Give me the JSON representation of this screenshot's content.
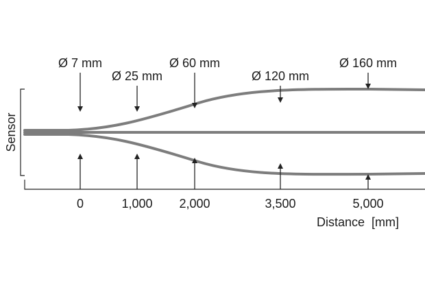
{
  "sensor_label": "Sensor",
  "distance_label": "Distance  [mm]",
  "colors": {
    "beam": "#7d7d7d",
    "ink": "#222222",
    "text": "#1a1a1a",
    "background": "#ffffff"
  },
  "spots": [
    {
      "distance_mm": 0,
      "tick_label": "0",
      "diameter_label": "Ø 7 mm"
    },
    {
      "distance_mm": 1000,
      "tick_label": "1,000",
      "diameter_label": "Ø 25 mm"
    },
    {
      "distance_mm": 2000,
      "tick_label": "2,000",
      "diameter_label": "Ø 60 mm"
    },
    {
      "distance_mm": 3500,
      "tick_label": "3,500",
      "diameter_label": "Ø 120 mm"
    },
    {
      "distance_mm": 5000,
      "tick_label": "5,000",
      "diameter_label": "Ø 160 mm"
    }
  ]
}
